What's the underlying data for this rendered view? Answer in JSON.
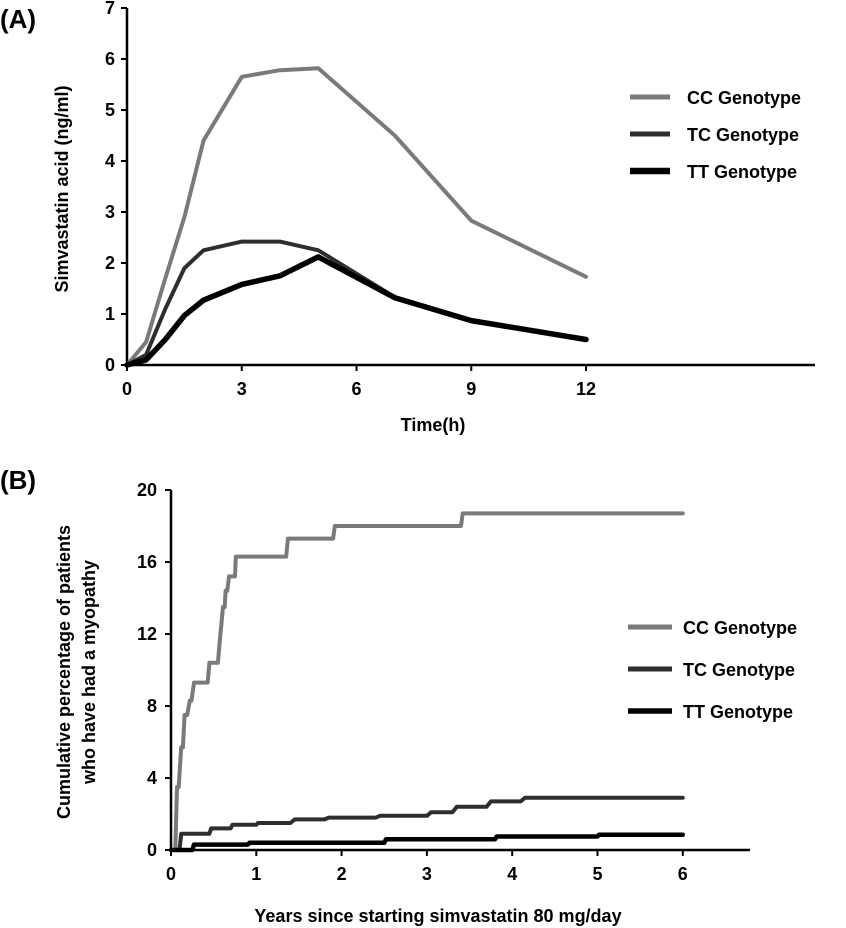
{
  "chart_data": [
    {
      "type": "line",
      "panel_label": "(A)",
      "xlabel": "Time(h)",
      "ylabel": "Simvastatin acid (ng/ml)",
      "xlim": [
        0,
        14.5
      ],
      "ylim": [
        0,
        7
      ],
      "xticks": [
        0,
        3,
        6,
        9,
        12
      ],
      "yticks": [
        0,
        1,
        2,
        3,
        4,
        5,
        6,
        7
      ],
      "legend_position": "right",
      "series": [
        {
          "name": "CC Genotype",
          "color": "#7a7a7a",
          "x": [
            0,
            0.5,
            1,
            1.5,
            2,
            3,
            4,
            5,
            7,
            9,
            12
          ],
          "y": [
            0,
            0.45,
            1.7,
            2.9,
            4.4,
            5.65,
            5.78,
            5.82,
            4.5,
            2.83,
            1.73
          ]
        },
        {
          "name": "TC Genotype",
          "color": "#2e2e2e",
          "x": [
            0,
            0.5,
            1,
            1.5,
            2,
            3,
            4,
            5,
            7,
            9,
            12
          ],
          "y": [
            0,
            0.2,
            1.1,
            1.9,
            2.25,
            2.42,
            2.42,
            2.25,
            1.33,
            0.87,
            0.5
          ]
        },
        {
          "name": "TT Genotype",
          "color": "#000000",
          "x": [
            0,
            0.5,
            1,
            1.5,
            2,
            3,
            4,
            5,
            7,
            9,
            12
          ],
          "y": [
            0,
            0.1,
            0.5,
            0.97,
            1.27,
            1.58,
            1.75,
            2.12,
            1.32,
            0.87,
            0.5
          ]
        }
      ]
    },
    {
      "type": "line",
      "panel_label": "(B)",
      "xlabel": "Years since starting simvastatin 80 mg/day",
      "ylabel": [
        "Cumulative percentage of patients",
        "who have had a myopathy"
      ],
      "xlim": [
        0,
        6.5
      ],
      "ylim": [
        0,
        20
      ],
      "xticks": [
        0,
        1,
        2,
        3,
        4,
        5,
        6
      ],
      "yticks": [
        0,
        4,
        8,
        12,
        16,
        20
      ],
      "legend_position": "right",
      "series": [
        {
          "name": "CC Genotype",
          "color": "#7a7a7a",
          "x": [
            0,
            0.05,
            0.07,
            0.09,
            0.12,
            0.14,
            0.16,
            0.19,
            0.22,
            0.24,
            0.27,
            0.33,
            0.35,
            0.43,
            0.45,
            0.55,
            0.57,
            0.59,
            0.61,
            0.63,
            0.64,
            0.66,
            0.68,
            0.7,
            0.72,
            0.75,
            0.76,
            0.78,
            0.8,
            1.35,
            1.37,
            1.9,
            1.92,
            3.4,
            3.42,
            6.0
          ],
          "y": [
            0,
            0,
            3.5,
            3.5,
            5.7,
            5.7,
            7.5,
            7.5,
            8.3,
            8.3,
            9.3,
            9.3,
            9.3,
            9.3,
            10.4,
            10.4,
            11.5,
            12.5,
            13.5,
            13.5,
            14.4,
            14.4,
            15.2,
            15.2,
            15.2,
            15.2,
            16.3,
            16.3,
            16.3,
            16.3,
            17.3,
            17.3,
            18.0,
            18.0,
            18.7,
            18.7
          ]
        },
        {
          "name": "TC Genotype",
          "color": "#2e2e2e",
          "x": [
            0,
            0.1,
            0.12,
            0.45,
            0.47,
            0.7,
            0.72,
            1.0,
            1.02,
            1.4,
            1.45,
            1.8,
            1.85,
            2.4,
            2.45,
            3.0,
            3.05,
            3.3,
            3.35,
            3.7,
            3.75,
            4.1,
            4.15,
            6.0
          ],
          "y": [
            0,
            0,
            0.9,
            0.9,
            1.2,
            1.2,
            1.4,
            1.4,
            1.5,
            1.5,
            1.7,
            1.7,
            1.8,
            1.8,
            1.9,
            1.9,
            2.1,
            2.1,
            2.4,
            2.4,
            2.7,
            2.7,
            2.9,
            2.9
          ]
        },
        {
          "name": "TT Genotype",
          "color": "#000000",
          "x": [
            0,
            0.25,
            0.27,
            0.9,
            0.92,
            2.5,
            2.52,
            3.8,
            3.82,
            5.0,
            5.02,
            6.0
          ],
          "y": [
            0,
            0,
            0.3,
            0.3,
            0.4,
            0.4,
            0.6,
            0.6,
            0.75,
            0.75,
            0.85,
            0.85
          ]
        }
      ]
    }
  ]
}
